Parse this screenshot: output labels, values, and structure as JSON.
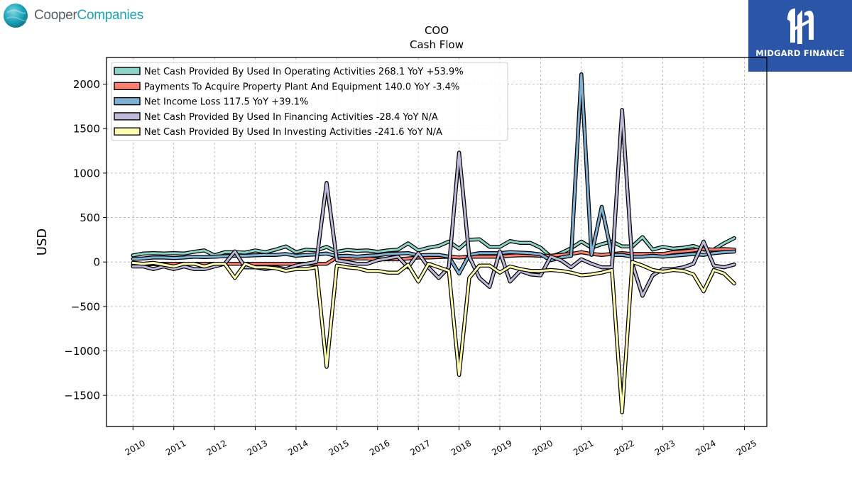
{
  "branding": {
    "company_part1": "Cooper",
    "company_part2": "Companies",
    "sponsor": "MIDGARD FINANCE"
  },
  "colors": {
    "operating": "#8dd3c7",
    "capex": "#fb8072",
    "net_income": "#80b1d3",
    "financing": "#bebada",
    "investing": "#ffffb3",
    "outline": "#000000",
    "grid": "#b0b0b0",
    "brand_teal": "#1aa3b8",
    "sponsor_bg": "#2b56a8"
  },
  "chart_data": {
    "type": "line",
    "title": "COO",
    "subtitle": "Cash Flow",
    "xlabel": "",
    "ylabel": "USD",
    "xlim": [
      2009.35,
      2025.55
    ],
    "ylim": [
      -1850,
      2300
    ],
    "yticks": [
      -1500,
      -1000,
      -500,
      0,
      500,
      1000,
      1500,
      2000
    ],
    "ytick_labels": [
      "−1500",
      "−1000",
      "−500",
      "0",
      "500",
      "1000",
      "1500",
      "2000"
    ],
    "xticks": [
      2010,
      2011,
      2012,
      2013,
      2014,
      2015,
      2016,
      2017,
      2018,
      2019,
      2020,
      2021,
      2022,
      2023,
      2024,
      2025
    ],
    "xtick_labels": [
      "2010",
      "2011",
      "2012",
      "2013",
      "2014",
      "2015",
      "2016",
      "2017",
      "2018",
      "2019",
      "2020",
      "2021",
      "2022",
      "2023",
      "2024",
      "2025"
    ],
    "grid": true,
    "legend_position": "top-left",
    "x": [
      2010.0,
      2010.25,
      2010.5,
      2010.75,
      2011.0,
      2011.25,
      2011.5,
      2011.75,
      2012.0,
      2012.25,
      2012.5,
      2012.75,
      2013.0,
      2013.25,
      2013.5,
      2013.75,
      2014.0,
      2014.25,
      2014.5,
      2014.75,
      2015.0,
      2015.25,
      2015.5,
      2015.75,
      2016.0,
      2016.25,
      2016.5,
      2016.75,
      2017.0,
      2017.25,
      2017.5,
      2017.75,
      2018.0,
      2018.25,
      2018.5,
      2018.75,
      2019.0,
      2019.25,
      2019.5,
      2019.75,
      2020.0,
      2020.25,
      2020.5,
      2020.75,
      2021.0,
      2021.25,
      2021.5,
      2021.75,
      2022.0,
      2022.25,
      2022.5,
      2022.75,
      2023.0,
      2023.25,
      2023.5,
      2023.75,
      2024.0,
      2024.25,
      2024.5,
      2024.75
    ],
    "series": [
      {
        "name": "Net Cash Provided By Used In Operating Activities",
        "legend": "Net Cash Provided By Used In Operating Activities  268.1 YoY +53.9%",
        "color": "#8dd3c7",
        "values": [
          75,
          95,
          100,
          95,
          100,
          95,
          115,
          130,
          75,
          110,
          110,
          105,
          130,
          110,
          140,
          175,
          110,
          140,
          130,
          170,
          115,
          135,
          125,
          130,
          115,
          130,
          140,
          210,
          130,
          160,
          180,
          230,
          150,
          250,
          255,
          170,
          170,
          235,
          215,
          215,
          160,
          60,
          100,
          155,
          230,
          160,
          200,
          230,
          175,
          175,
          280,
          140,
          170,
          150,
          160,
          180,
          140,
          140,
          210,
          268
        ]
      },
      {
        "name": "Payments To Acquire Property Plant And Equipment",
        "legend": "Payments To Acquire Property Plant And Equipment  140.0 YoY -3.4%",
        "color": "#fb8072",
        "values": [
          -30,
          -25,
          -25,
          -20,
          -20,
          -20,
          -20,
          -20,
          -20,
          -20,
          -20,
          -20,
          -20,
          -20,
          -20,
          -20,
          -20,
          -20,
          -20,
          -20,
          50,
          40,
          40,
          40,
          30,
          30,
          30,
          40,
          50,
          50,
          55,
          60,
          50,
          60,
          60,
          60,
          60,
          70,
          75,
          75,
          70,
          70,
          80,
          90,
          110,
          90,
          80,
          90,
          100,
          90,
          90,
          90,
          90,
          110,
          120,
          130,
          145,
          140,
          145,
          140
        ]
      },
      {
        "name": "Net Income Loss",
        "legend": "Net Income Loss  117.5 YoY +39.1%",
        "color": "#80b1d3",
        "values": [
          35,
          40,
          50,
          50,
          45,
          50,
          60,
          55,
          60,
          65,
          70,
          70,
          75,
          80,
          80,
          90,
          70,
          80,
          85,
          95,
          65,
          70,
          60,
          70,
          75,
          90,
          95,
          100,
          75,
          80,
          80,
          60,
          -130,
          80,
          100,
          100,
          100,
          110,
          105,
          100,
          85,
          20,
          50,
          70,
          2110,
          80,
          620,
          80,
          80,
          60,
          60,
          70,
          60,
          70,
          80,
          90,
          80,
          100,
          110,
          117.5
        ]
      },
      {
        "name": "Net Cash Provided By Used In Financing Activities",
        "legend": "Net Cash Provided By Used In Financing Activities  -28.4 YoY N/A",
        "color": "#bebada",
        "values": [
          -50,
          -50,
          -80,
          -50,
          -80,
          -50,
          -80,
          -80,
          -50,
          -20,
          120,
          -60,
          -60,
          -80,
          -60,
          -80,
          -40,
          -20,
          0,
          890,
          20,
          0,
          -20,
          -20,
          20,
          40,
          60,
          -60,
          100,
          -60,
          -180,
          -60,
          1230,
          60,
          -180,
          -280,
          120,
          -220,
          -100,
          -140,
          -150,
          60,
          20,
          -60,
          30,
          -20,
          -60,
          -60,
          1710,
          -20,
          -380,
          -150,
          -80,
          -80,
          -60,
          -20,
          230,
          -40,
          -60,
          -28.4
        ]
      },
      {
        "name": "Net Cash Provided By Used In Investing Activities",
        "legend": "Net Cash Provided By Used In Investing Activities  -241.6 YoY N/A",
        "color": "#ffffb3",
        "values": [
          -10,
          -20,
          -10,
          -30,
          -50,
          -20,
          -20,
          -50,
          -20,
          -20,
          -180,
          -20,
          -60,
          -60,
          -70,
          -100,
          -80,
          -80,
          -60,
          -1180,
          -40,
          -60,
          -70,
          -100,
          -100,
          -120,
          -120,
          -30,
          -220,
          -20,
          -60,
          -100,
          -1270,
          -180,
          -40,
          -40,
          -120,
          -50,
          -80,
          -100,
          -100,
          -90,
          -100,
          -120,
          -150,
          -140,
          -120,
          -90,
          -1690,
          0,
          -40,
          -90,
          -110,
          -90,
          -100,
          -140,
          -330,
          -90,
          -130,
          -241.6
        ]
      }
    ]
  }
}
